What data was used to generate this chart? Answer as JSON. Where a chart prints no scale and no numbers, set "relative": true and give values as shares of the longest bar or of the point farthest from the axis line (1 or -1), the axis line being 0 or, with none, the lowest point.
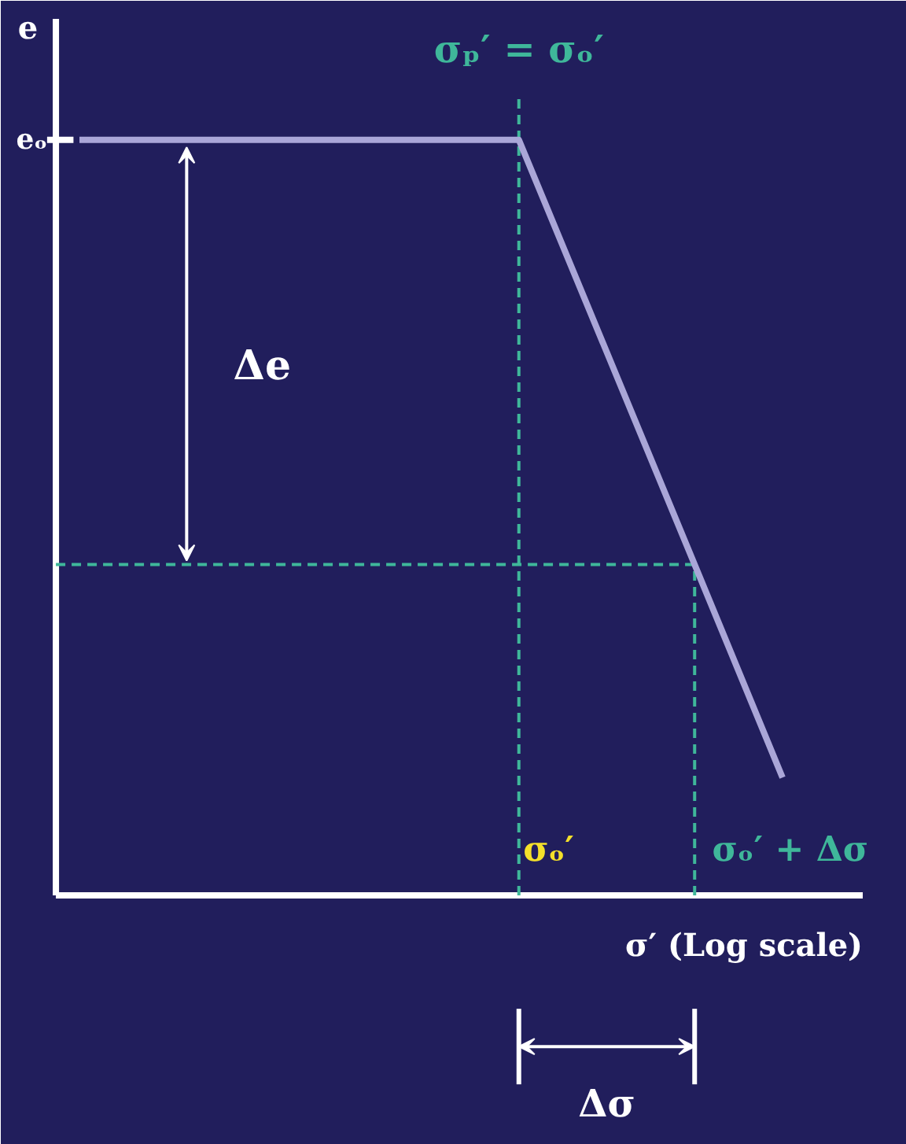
{
  "chart_data": {
    "type": "line",
    "relative": true,
    "xlabel": "σ′ (Log scale)",
    "ylabel": "e",
    "categories": [
      null,
      null,
      null,
      null,
      null,
      null,
      null,
      null,
      null
    ],
    "series": [
      {
        "color": "#aaa6d8",
        "values": [
          1,
          1,
          1,
          1,
          1,
          1,
          0.719,
          0.438,
          0.156
        ]
      }
    ],
    "ref_lines": [
      {
        "axis": "y",
        "value": 0.438,
        "color": "#3fb79a",
        "line_style": "dashed"
      }
    ],
    "annotations": [
      "eₒ",
      "σₚ′ = σₒ′",
      "σₒ′",
      "σₒ′ + Δσ",
      "Δe",
      "Δσ"
    ],
    "grid": false,
    "marker": "none",
    "line_style": "solid"
  }
}
